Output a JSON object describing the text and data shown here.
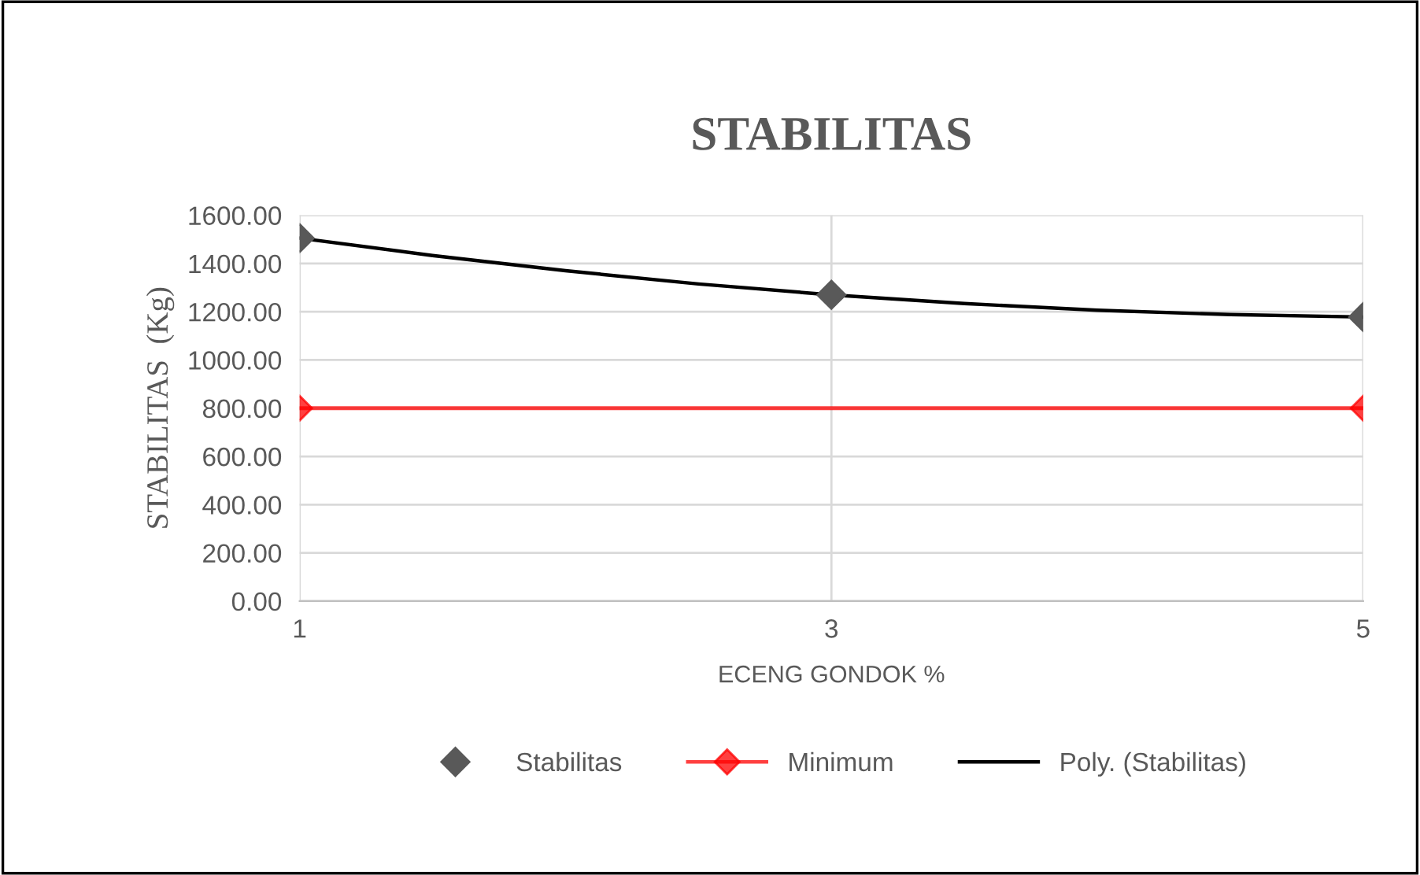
{
  "chart_data": {
    "type": "scatter",
    "title": "STABILITAS",
    "xlabel": "ECENG GONDOK %",
    "ylabel": "STABILITAS  (Kg)",
    "xlim": [
      1,
      5
    ],
    "xticks": [
      1,
      3,
      5
    ],
    "ylim": [
      0,
      1600
    ],
    "yticks": [
      {
        "value": 0,
        "label": "0.00"
      },
      {
        "value": 200,
        "label": "200.00"
      },
      {
        "value": 400,
        "label": "400.00"
      },
      {
        "value": 600,
        "label": "600.00"
      },
      {
        "value": 800,
        "label": "800.00"
      },
      {
        "value": 1000,
        "label": "1000.00"
      },
      {
        "value": 1200,
        "label": "1200.00"
      },
      {
        "value": 1400,
        "label": "1400.00"
      },
      {
        "value": 1600,
        "label": "1600.00"
      }
    ],
    "grid": true,
    "legend": "bottom",
    "series": [
      {
        "name": "Stabilitas",
        "marker": "diamond",
        "color": "#595959",
        "x": [
          1,
          3,
          5
        ],
        "values": [
          1505,
          1270,
          1178
        ]
      },
      {
        "name": "Minimum",
        "type": "line",
        "marker": "diamond",
        "color": "#ff0000",
        "x": [
          1,
          5
        ],
        "values": [
          800,
          800
        ]
      },
      {
        "name": "Poly. (Stabilitas)",
        "type": "line",
        "marker": "none",
        "color": "#000000",
        "x": [
          1,
          1.5,
          2,
          2.5,
          3,
          3.5,
          4,
          4.5,
          5
        ],
        "values": [
          1505,
          1433,
          1370,
          1315,
          1270,
          1234,
          1206,
          1188,
          1178
        ]
      }
    ]
  }
}
